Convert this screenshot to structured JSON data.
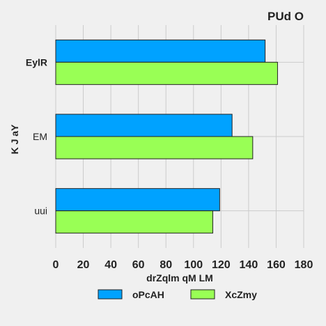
{
  "chart_data": {
    "type": "bar",
    "orientation": "horizontal",
    "title": "PUd  O",
    "xlabel": "drZqlm qM  LM",
    "ylabel": "K J aY",
    "categories": [
      "EylR",
      "EM",
      "uui"
    ],
    "series": [
      {
        "name": "oPcAH",
        "values": [
          152,
          128,
          119
        ],
        "color": "#00a2ff"
      },
      {
        "name": "XcZmy",
        "values": [
          161,
          143,
          114
        ],
        "color": "#99ff55"
      }
    ],
    "xlim": [
      0,
      180
    ],
    "xticks": [
      0,
      20,
      40,
      60,
      80,
      100,
      120,
      140,
      160,
      180
    ],
    "grid": true,
    "legend": "bottom"
  }
}
